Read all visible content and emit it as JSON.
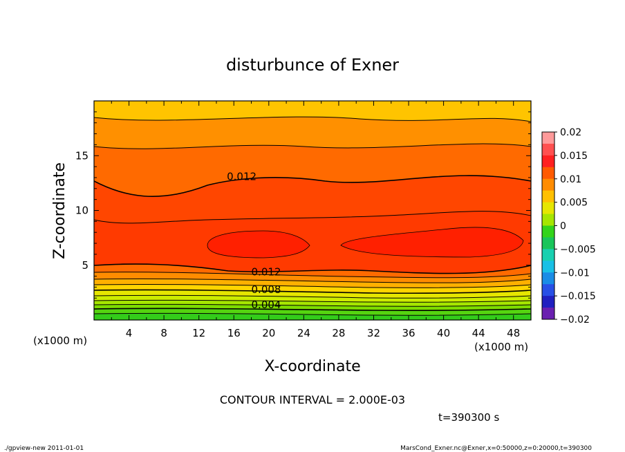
{
  "chart_data": {
    "type": "heatmap",
    "title": "disturbunce of Exner",
    "xlabel": "X-coordinate",
    "ylabel": "Z-coordinate",
    "x_unit": "(x1000 m)",
    "z_unit": "(x1000 m)",
    "xlim": [
      0,
      50
    ],
    "ylim": [
      0,
      20
    ],
    "x_ticks": [
      4,
      8,
      12,
      16,
      20,
      24,
      28,
      32,
      36,
      40,
      44,
      48
    ],
    "y_ticks": [
      5,
      10,
      15
    ],
    "contour_labels": [
      {
        "text": "0.012",
        "x": 15.2,
        "z": 12.9
      },
      {
        "text": "0.012",
        "x": 18.0,
        "z": 4.2
      },
      {
        "text": "0.008",
        "x": 18.0,
        "z": 2.6
      },
      {
        "text": "0.004",
        "x": 18.0,
        "z": 1.2
      }
    ],
    "contour_interval": "CONTOUR INTERVAL = 2.000E-03",
    "colorbar": {
      "levels": [
        0.02,
        0.015,
        0.01,
        0.005,
        0,
        -0.005,
        -0.01,
        -0.015,
        -0.02
      ],
      "labels": [
        "0.02",
        "0.015",
        "0.01",
        "0.005",
        "0",
        "−0.005",
        "−0.01",
        "−0.015",
        "−0.02"
      ],
      "colors": [
        "#ff9a9a",
        "#ff5050",
        "#ff2020",
        "#ff5a00",
        "#ff8c00",
        "#ffc000",
        "#e6e600",
        "#a6e600",
        "#33d41a",
        "#19c55a",
        "#19d0b0",
        "#19c0e6",
        "#1a8ce6",
        "#2850e6",
        "#2020c0",
        "#6a20b0"
      ]
    },
    "time": "t=390300 s",
    "footer_left": "./gpview-new  2011-01-01",
    "footer_right": "MarsCond_Exner.nc@Exner,x=0:50000,z=0:20000,t=390300"
  }
}
